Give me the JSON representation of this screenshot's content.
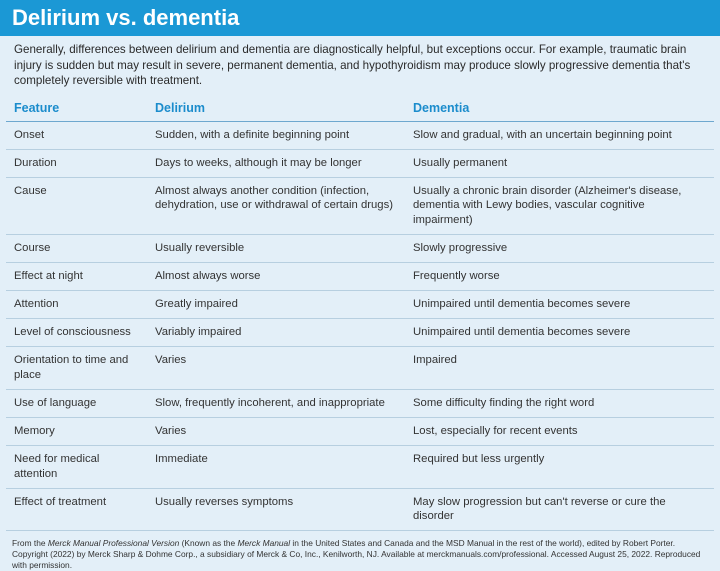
{
  "header": {
    "title": "Delirium vs. dementia"
  },
  "intro": "Generally, differences between delirium and dementia are diagnostically helpful, but exceptions occur. For example, traumatic brain injury is sudden but may result in severe, permanent dementia, and hypothyroidism may produce slowly progressive dementia that's completely reversible with treatment.",
  "table": {
    "columns": [
      "Feature",
      "Delirium",
      "Dementia"
    ],
    "rows": [
      [
        "Onset",
        "Sudden, with a definite beginning point",
        "Slow and gradual, with an uncertain beginning point"
      ],
      [
        "Duration",
        "Days to weeks, although it may be longer",
        "Usually permanent"
      ],
      [
        "Cause",
        "Almost always another condition (infection, dehydration, use or withdrawal of certain drugs)",
        "Usually a chronic brain disorder (Alzheimer's disease, dementia with Lewy bodies, vascular cognitive impairment)"
      ],
      [
        "Course",
        "Usually reversible",
        "Slowly progressive"
      ],
      [
        "Effect at night",
        "Almost always worse",
        "Frequently worse"
      ],
      [
        "Attention",
        "Greatly impaired",
        "Unimpaired until dementia becomes severe"
      ],
      [
        "Level of consciousness",
        "Variably impaired",
        "Unimpaired until dementia becomes severe"
      ],
      [
        "Orientation to time and place",
        "Varies",
        "Impaired"
      ],
      [
        "Use of language",
        "Slow, frequently incoherent, and inappropriate",
        "Some difficulty finding the right word"
      ],
      [
        "Memory",
        "Varies",
        "Lost, especially for recent events"
      ],
      [
        "Need for medical attention",
        "Immediate",
        "Required but less urgently"
      ],
      [
        "Effect of treatment",
        "Usually reverses symptoms",
        "May slow progression but can't reverse or cure the disorder"
      ]
    ]
  },
  "footer": [
    "From the ",
    "Merck Manual Professional Version",
    " (Known as the ",
    "Merck Manual",
    " in the United States and Canada and the MSD Manual in the rest of the world), edited by Robert Porter. Copyright (2022) by Merck Sharp & Dohme Corp., a subsidiary of Merck & Co, Inc., Kenilworth, NJ. Available at merckmanuals.com/professional. Accessed August 25, 2022. Reproduced with permission."
  ]
}
